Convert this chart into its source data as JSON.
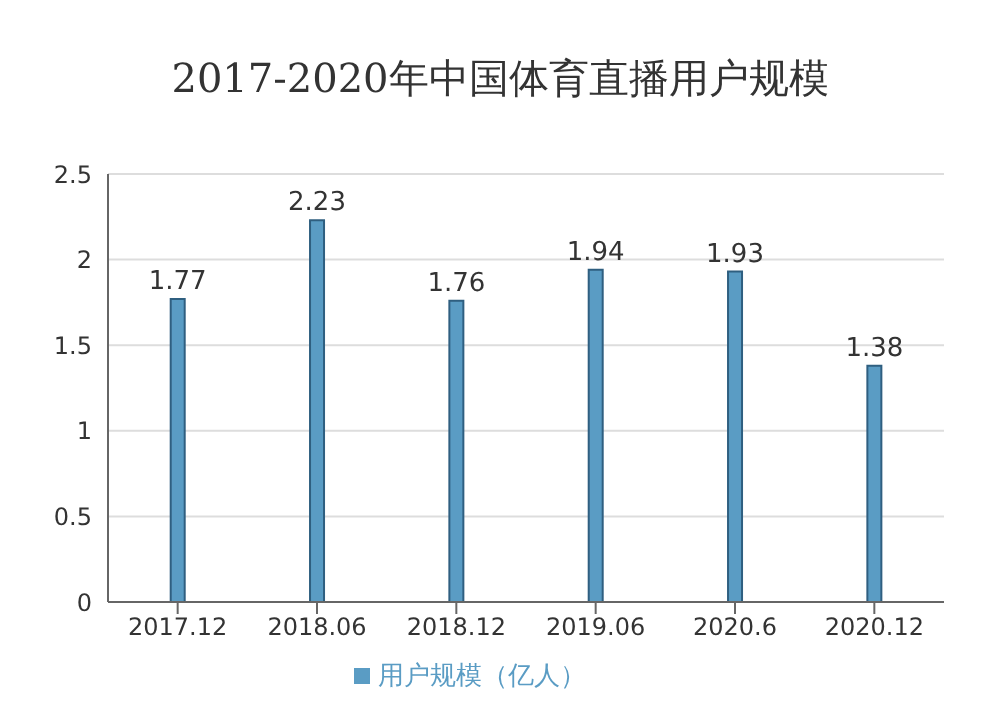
{
  "chart_data": {
    "type": "bar",
    "title": "2017-2020年中国体育直播用户规模",
    "categories": [
      "2017.12",
      "2018.06",
      "2018.12",
      "2019.06",
      "2020.6",
      "2020.12"
    ],
    "series": [
      {
        "name": "用户规模（亿人）",
        "color": "#5a9cc4",
        "values": [
          1.77,
          2.23,
          1.76,
          1.94,
          1.93,
          1.38
        ]
      }
    ],
    "ylim": [
      0,
      2.5
    ],
    "yticks": [
      0,
      0.5,
      1,
      1.5,
      2,
      2.5
    ],
    "grid": "y",
    "legend": "bottom",
    "data_labels": true
  }
}
